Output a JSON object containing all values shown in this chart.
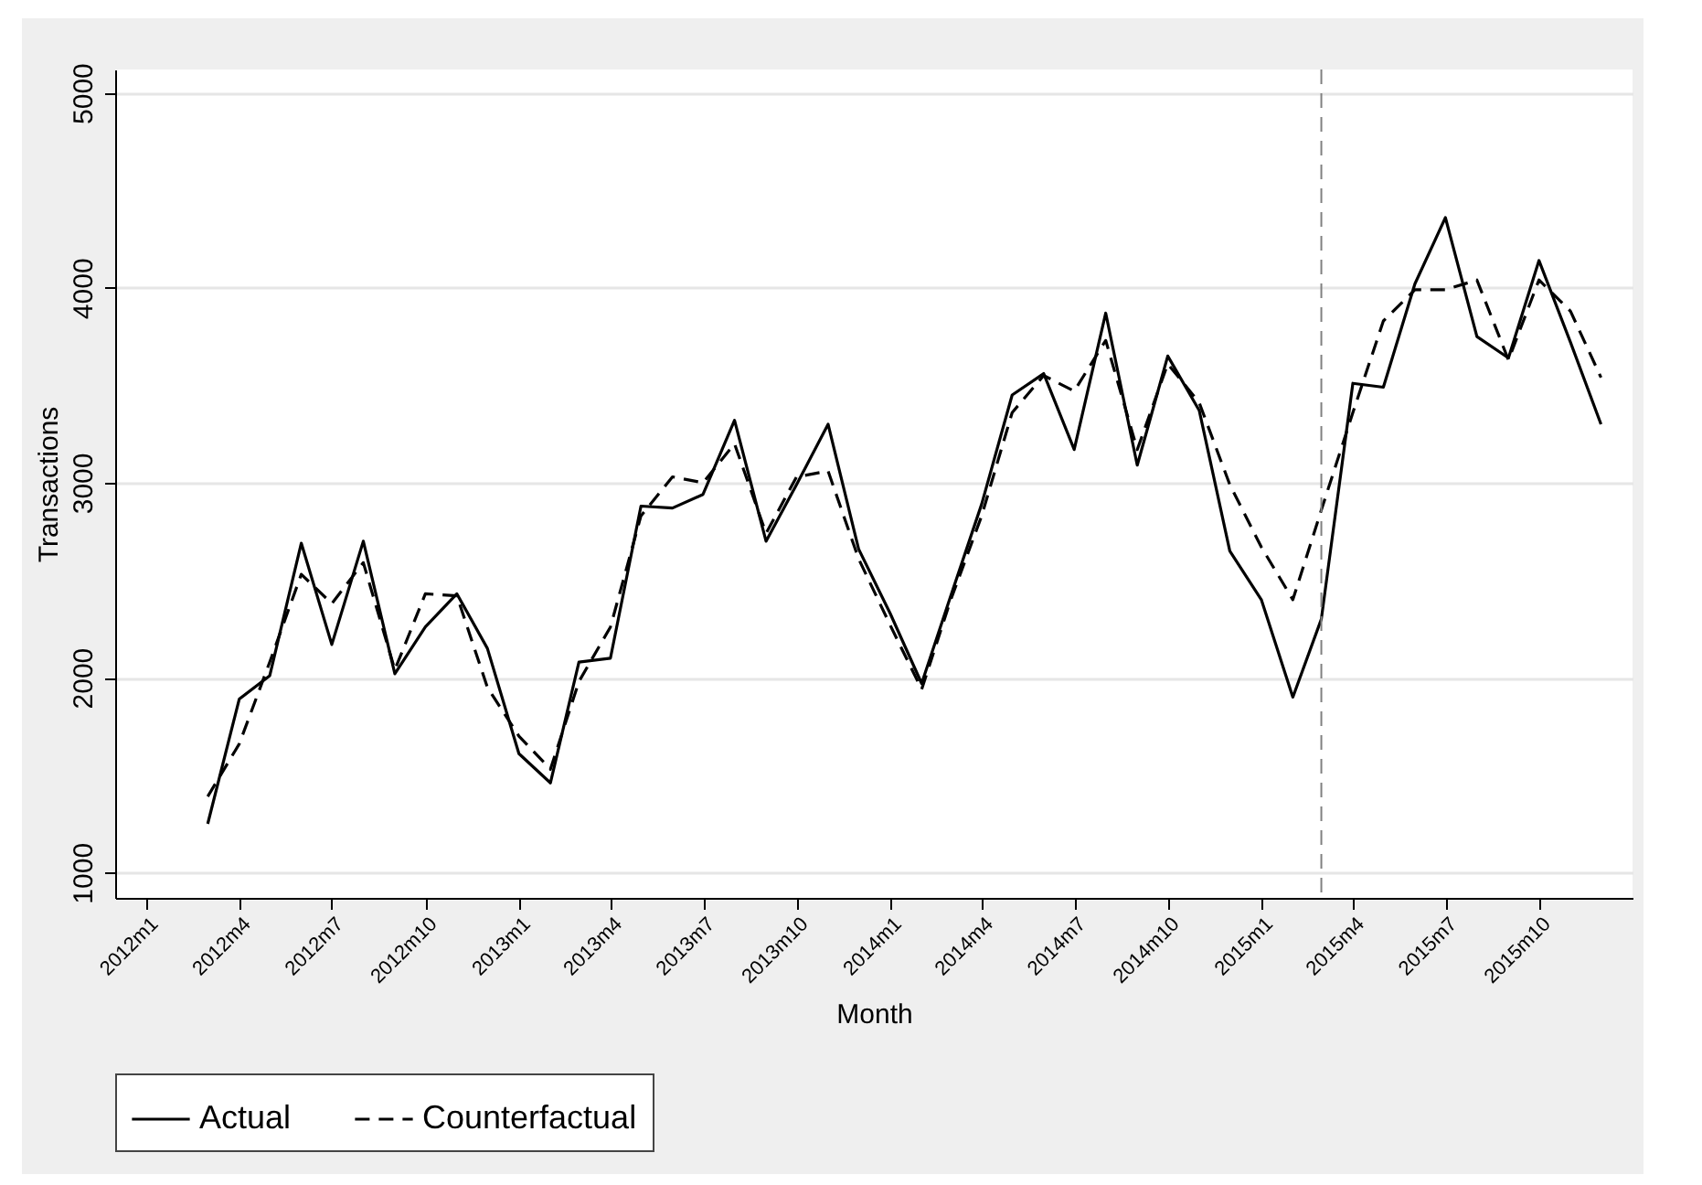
{
  "chart_data": {
    "type": "line",
    "xlabel": "Month",
    "ylabel": "Transactions",
    "x": [
      "2012-03",
      "2012-04",
      "2012-05",
      "2012-06",
      "2012-07",
      "2012-08",
      "2012-09",
      "2012-10",
      "2012-11",
      "2012-12",
      "2013-01",
      "2013-02",
      "2013-03",
      "2013-04",
      "2013-05",
      "2013-06",
      "2013-07",
      "2013-08",
      "2013-09",
      "2013-10",
      "2013-11",
      "2013-12",
      "2014-01",
      "2014-02",
      "2014-03",
      "2014-04",
      "2014-05",
      "2014-06",
      "2014-07",
      "2014-08",
      "2014-09",
      "2014-10",
      "2014-11",
      "2014-12",
      "2015-01",
      "2015-02",
      "2015-03",
      "2015-04",
      "2015-05",
      "2015-06",
      "2015-07",
      "2015-08",
      "2015-09",
      "2015-10",
      "2015-11",
      "2015-12"
    ],
    "series": [
      {
        "name": "Actual",
        "color": "#000000",
        "line_style": "solid",
        "values": [
          1250,
          1890,
          2010,
          2690,
          2170,
          2700,
          2020,
          2260,
          2430,
          2150,
          1610,
          1460,
          2080,
          2100,
          2880,
          2870,
          2940,
          3320,
          2700,
          2990,
          3300,
          2660,
          2330,
          1970,
          2410,
          2890,
          3450,
          3560,
          3170,
          3870,
          3090,
          3650,
          3370,
          2650,
          2400,
          1900,
          2300,
          3510,
          3490,
          4020,
          4360,
          3750,
          3640,
          4140,
          3720,
          3300
        ]
      },
      {
        "name": "Counterfactual",
        "color": "#000000",
        "line_style": "dashed",
        "values": [
          1390,
          1660,
          2080,
          2530,
          2380,
          2590,
          2040,
          2430,
          2420,
          1950,
          1700,
          1530,
          1980,
          2260,
          2830,
          3030,
          3000,
          3200,
          2740,
          3030,
          3060,
          2610,
          2270,
          1940,
          2390,
          2830,
          3360,
          3550,
          3470,
          3730,
          3170,
          3610,
          3410,
          2990,
          2670,
          2400,
          2860,
          3360,
          3830,
          3990,
          3990,
          4040,
          3630,
          4040,
          3880,
          3540
        ]
      }
    ],
    "xlim": [
      "2011-12",
      "2016-01"
    ],
    "xticks": [
      {
        "value": "2012-01",
        "label": "2012m1"
      },
      {
        "value": "2012-04",
        "label": "2012m4"
      },
      {
        "value": "2012-07",
        "label": "2012m7"
      },
      {
        "value": "2012-10",
        "label": "2012m10"
      },
      {
        "value": "2013-01",
        "label": "2013m1"
      },
      {
        "value": "2013-04",
        "label": "2013m4"
      },
      {
        "value": "2013-07",
        "label": "2013m7"
      },
      {
        "value": "2013-10",
        "label": "2013m10"
      },
      {
        "value": "2014-01",
        "label": "2014m1"
      },
      {
        "value": "2014-04",
        "label": "2014m4"
      },
      {
        "value": "2014-07",
        "label": "2014m7"
      },
      {
        "value": "2014-10",
        "label": "2014m10"
      },
      {
        "value": "2015-01",
        "label": "2015m1"
      },
      {
        "value": "2015-04",
        "label": "2015m4"
      },
      {
        "value": "2015-07",
        "label": "2015m7"
      },
      {
        "value": "2015-10",
        "label": "2015m10"
      }
    ],
    "ylim": [
      870,
      5120
    ],
    "yticks": [
      1000,
      2000,
      3000,
      4000,
      5000
    ],
    "grid": "y",
    "legend": "bottom",
    "ref_lines": [
      {
        "axis": "x",
        "value": "2015-03",
        "color": "#808080",
        "line_style": "dashed"
      }
    ]
  }
}
